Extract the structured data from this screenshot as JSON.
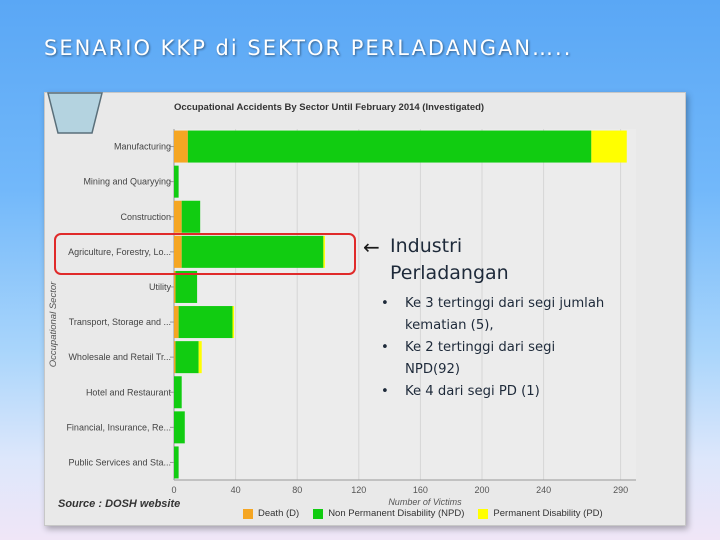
{
  "slide_title": "SENARIO KKP di SEKTOR PERLADANGAN…..",
  "annotation": {
    "heading_line1": "Industri",
    "heading_line2": "Perladangan",
    "bullets": [
      "Ke 3 tertinggi dari segi jumlah kematian (5),",
      "Ke 2 tertinggi dari segi NPD(92)",
      "Ke 4 dari segi PD (1)"
    ],
    "arrow_icon": "left-arrow-icon"
  },
  "source": "Source : DOSH website",
  "colors": {
    "death": "#f5a623",
    "npd": "#11cc11",
    "pd": "#ffff00",
    "highlight": "#e02a2a"
  },
  "chart_data": {
    "type": "bar",
    "orientation": "horizontal",
    "stacked": true,
    "title": "Occupational Accidents By Sector Until February 2014 (Investigated)",
    "xlabel": "Number of Victims",
    "ylabel": "Occupational Sector",
    "xlim": [
      0,
      300
    ],
    "xticks": [
      "0",
      "40",
      "80",
      "120",
      "160",
      "200",
      "240",
      "290"
    ],
    "categories": [
      "Manufacturing",
      "Mining and Quaryying",
      "Construction",
      "Agriculture, Forestry, Lo...",
      "Utility",
      "Transport, Storage and ...",
      "Wholesale and Retail Tr...",
      "Hotel and Restaurant",
      "Financial, Insurance, Re...",
      "Public Services and Sta..."
    ],
    "series": [
      {
        "name": "Death (D)",
        "values": [
          9,
          0,
          5,
          5,
          1,
          3,
          1,
          0,
          0,
          0
        ]
      },
      {
        "name": "Non Permanent Disability (NPD)",
        "values": [
          262,
          3,
          12,
          92,
          14,
          35,
          15,
          5,
          7,
          3
        ]
      },
      {
        "name": "Permanent Disability (PD)",
        "values": [
          23,
          0,
          0,
          1,
          0,
          1,
          2,
          0,
          0,
          0
        ]
      }
    ],
    "highlight_category": "Agriculture, Forestry, Lo...",
    "grid": true,
    "legend_position": "bottom"
  }
}
